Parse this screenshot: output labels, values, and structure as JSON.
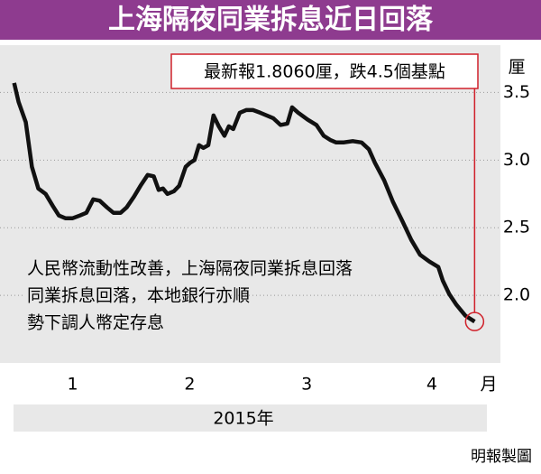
{
  "chart_data": {
    "type": "line",
    "title": "上海隔夜同業拆息近日回落",
    "annotation": "最新報1.8060厘，跌4.5個基點",
    "note": [
      "人民幣流動性改善，上海隔夜同業拆息回落",
      "同業拆息回落，本地銀行亦順",
      "勢下調人幣定存息"
    ],
    "y_label": "厘",
    "x_label": "月",
    "x_caption": "2015年",
    "source": "明報製圖",
    "xlim": [
      -2,
      122
    ],
    "ylim": [
      1.5,
      3.85
    ],
    "xticks": [
      {
        "value": 16,
        "label": "1"
      },
      {
        "value": 45,
        "label": "2"
      },
      {
        "value": 74,
        "label": "3"
      },
      {
        "value": 105,
        "label": "4"
      }
    ],
    "yticks": [
      3.5,
      {
        "value": 3,
        "label": "3.0"
      },
      2.5,
      {
        "value": 2,
        "label": "2.0"
      }
    ],
    "grid": true,
    "x": [
      1.5,
      2.6,
      4.4,
      5.9,
      7.5,
      9.3,
      11.1,
      12.6,
      14.2,
      16,
      17.8,
      19.4,
      21.1,
      22.7,
      24.5,
      26.1,
      27.9,
      29.4,
      31.2,
      32.8,
      34.6,
      36.1,
      37.3,
      38.4,
      39.5,
      41.1,
      42.4,
      44,
      45.1,
      46.2,
      47.3,
      48.4,
      49.6,
      50.9,
      52.2,
      53.6,
      54.7,
      55.8,
      57.4,
      59,
      60.7,
      62.5,
      64.1,
      65.7,
      67.5,
      69.2,
      70.4,
      71.9,
      74.2,
      76.4,
      78.2,
      79.8,
      81.3,
      83.1,
      85.4,
      87.6,
      89.4,
      90.9,
      93.2,
      95.4,
      97.7,
      99.9,
      102.1,
      104.4,
      106.6,
      107.7,
      109.3,
      111.1,
      113.3,
      115.6
    ],
    "series": [
      {
        "color": "#111111",
        "values": [
          3.57,
          3.43,
          3.28,
          2.95,
          2.79,
          2.75,
          2.66,
          2.59,
          2.57,
          2.57,
          2.59,
          2.61,
          2.71,
          2.7,
          2.65,
          2.61,
          2.61,
          2.65,
          2.73,
          2.81,
          2.89,
          2.88,
          2.78,
          2.79,
          2.75,
          2.77,
          2.81,
          2.95,
          2.98,
          3,
          3.11,
          3.09,
          3.11,
          3.33,
          3.25,
          3.18,
          3.25,
          3.23,
          3.35,
          3.37,
          3.37,
          3.35,
          3.33,
          3.31,
          3.26,
          3.27,
          3.39,
          3.35,
          3.3,
          3.26,
          3.18,
          3.15,
          3.13,
          3.13,
          3.14,
          3.13,
          3.08,
          2.98,
          2.85,
          2.69,
          2.55,
          2.41,
          2.3,
          2.25,
          2.21,
          2.11,
          2.01,
          1.93,
          1.85,
          1.806
        ]
      }
    ]
  }
}
